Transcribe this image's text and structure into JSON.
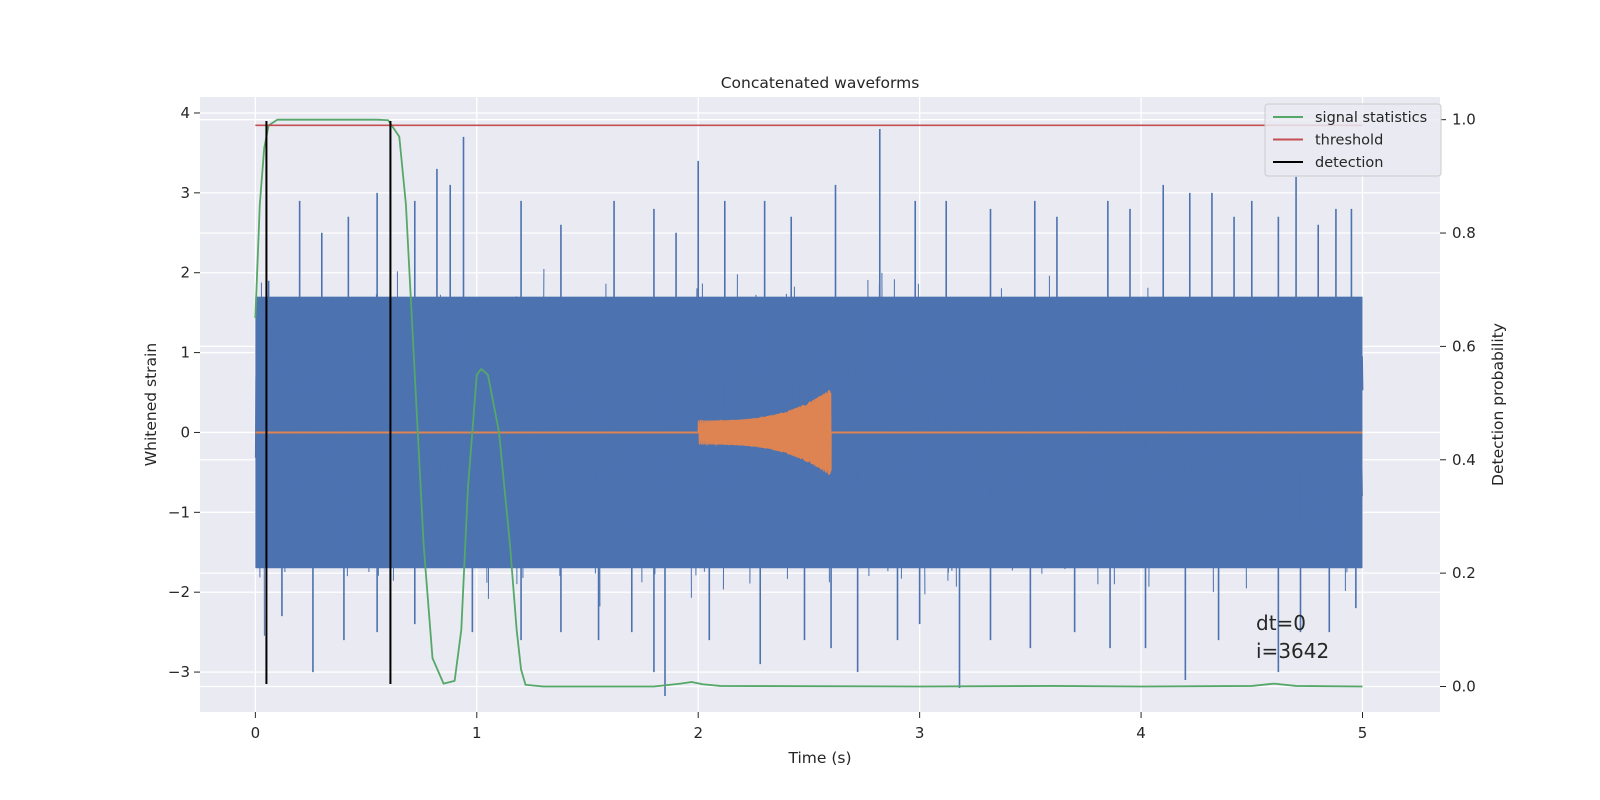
{
  "chart_data": {
    "type": "line",
    "title": "Concatenated waveforms",
    "xlabel": "Time (s)",
    "ylabel": "Whitened strain",
    "y2label": "Detection probability",
    "xlim": [
      -0.25,
      5.35
    ],
    "ylim": [
      -3.5,
      4.2
    ],
    "y2lim": [
      -0.045,
      1.04
    ],
    "xticks": [
      0,
      1,
      2,
      3,
      4,
      5
    ],
    "yticks": [
      -3,
      -2,
      -1,
      0,
      1,
      2,
      3,
      4
    ],
    "y2ticks": [
      0.0,
      0.2,
      0.4,
      0.6,
      0.8,
      1.0
    ],
    "xtick_labels": [
      "0",
      "1",
      "2",
      "3",
      "4",
      "5"
    ],
    "ytick_labels": [
      "−3",
      "−2",
      "−1",
      "0",
      "1",
      "2",
      "3",
      "4"
    ],
    "y2tick_labels": [
      "0.0",
      "0.2",
      "0.4",
      "0.6",
      "0.8",
      "1.0"
    ],
    "grid": true,
    "legend_position": "top-right",
    "colors": {
      "background": "#eaeaf2",
      "grid": "#ffffff",
      "strain": "#4c72b0",
      "injection": "#dd8452",
      "signal_statistics": "#55a868",
      "threshold": "#c44e52",
      "detection": "#000000"
    },
    "series": [
      {
        "kind": "noise",
        "axis": "left",
        "color": "#4c72b0",
        "x_range": [
          0,
          5
        ],
        "band": [
          -1.7,
          1.7
        ],
        "peaks": [
          [
            0.06,
            1.9
          ],
          [
            0.2,
            2.9
          ],
          [
            0.3,
            2.5
          ],
          [
            0.42,
            2.7
          ],
          [
            0.55,
            3.0
          ],
          [
            0.72,
            2.9
          ],
          [
            0.82,
            3.3
          ],
          [
            0.88,
            3.1
          ],
          [
            0.94,
            3.7
          ],
          [
            1.2,
            2.9
          ],
          [
            1.38,
            2.6
          ],
          [
            1.62,
            2.9
          ],
          [
            1.8,
            2.8
          ],
          [
            1.9,
            2.5
          ],
          [
            2.0,
            3.4
          ],
          [
            2.12,
            2.9
          ],
          [
            2.3,
            2.9
          ],
          [
            2.42,
            2.7
          ],
          [
            2.62,
            3.1
          ],
          [
            2.82,
            3.8
          ],
          [
            2.98,
            2.9
          ],
          [
            3.12,
            2.9
          ],
          [
            3.32,
            2.8
          ],
          [
            3.52,
            2.9
          ],
          [
            3.62,
            2.7
          ],
          [
            3.85,
            2.9
          ],
          [
            3.95,
            2.8
          ],
          [
            4.1,
            3.1
          ],
          [
            4.22,
            3.0
          ],
          [
            4.32,
            3.0
          ],
          [
            4.42,
            2.7
          ],
          [
            4.5,
            2.9
          ],
          [
            4.62,
            2.7
          ],
          [
            4.7,
            3.2
          ],
          [
            4.8,
            2.6
          ],
          [
            4.88,
            2.8
          ],
          [
            4.95,
            2.8
          ]
        ],
        "troughs": [
          [
            0.12,
            -2.3
          ],
          [
            0.26,
            -3.0
          ],
          [
            0.4,
            -2.6
          ],
          [
            0.55,
            -2.5
          ],
          [
            0.72,
            -2.4
          ],
          [
            0.98,
            -2.5
          ],
          [
            1.2,
            -2.6
          ],
          [
            1.38,
            -2.5
          ],
          [
            1.55,
            -2.6
          ],
          [
            1.7,
            -2.5
          ],
          [
            1.8,
            -3.0
          ],
          [
            1.85,
            -3.3
          ],
          [
            2.05,
            -2.6
          ],
          [
            2.28,
            -2.9
          ],
          [
            2.48,
            -2.6
          ],
          [
            2.6,
            -2.7
          ],
          [
            2.72,
            -3.0
          ],
          [
            2.9,
            -2.6
          ],
          [
            3.0,
            -2.4
          ],
          [
            3.18,
            -3.2
          ],
          [
            3.32,
            -2.6
          ],
          [
            3.5,
            -2.7
          ],
          [
            3.7,
            -2.5
          ],
          [
            3.86,
            -2.7
          ],
          [
            4.02,
            -2.7
          ],
          [
            4.2,
            -3.1
          ],
          [
            4.35,
            -2.6
          ],
          [
            4.62,
            -3.0
          ],
          [
            4.72,
            -2.5
          ],
          [
            4.85,
            -2.5
          ],
          [
            4.97,
            -2.2
          ]
        ]
      },
      {
        "kind": "chirp",
        "axis": "left",
        "color": "#dd8452",
        "x_range": [
          2.0,
          2.6
        ],
        "amplitude_start": 0.15,
        "amplitude_end": 0.55,
        "baseline": 0
      },
      {
        "name": "signal statistics",
        "axis": "right",
        "color": "#55a868",
        "x": [
          0.0,
          0.02,
          0.04,
          0.06,
          0.1,
          0.2,
          0.4,
          0.55,
          0.6,
          0.65,
          0.68,
          0.72,
          0.76,
          0.8,
          0.85,
          0.9,
          0.93,
          0.96,
          1.0,
          1.02,
          1.05,
          1.1,
          1.15,
          1.18,
          1.2,
          1.22,
          1.3,
          1.8,
          1.92,
          1.97,
          2.02,
          2.1,
          3.0,
          3.6,
          4.0,
          4.5,
          4.6,
          4.7,
          5.0
        ],
        "y": [
          0.65,
          0.85,
          0.95,
          0.99,
          1.0,
          1.0,
          1.0,
          1.0,
          0.999,
          0.97,
          0.85,
          0.55,
          0.25,
          0.05,
          0.005,
          0.01,
          0.1,
          0.35,
          0.55,
          0.56,
          0.55,
          0.45,
          0.25,
          0.1,
          0.03,
          0.003,
          0.0,
          0.0,
          0.005,
          0.008,
          0.004,
          0.001,
          0.0,
          0.001,
          0.0,
          0.001,
          0.005,
          0.001,
          0.0
        ]
      },
      {
        "name": "threshold",
        "axis": "right",
        "color": "#c44e52",
        "x": [
          0,
          5
        ],
        "y": [
          0.99,
          0.99
        ]
      },
      {
        "name": "detection",
        "axis": "left",
        "color": "#000000",
        "kind": "vlines",
        "x": [
          0.05,
          0.61
        ],
        "y_range": [
          -3.15,
          3.9
        ]
      }
    ],
    "legend": [
      "signal statistics",
      "threshold",
      "detection"
    ],
    "annotations": [
      "dt=0",
      "i=3642"
    ]
  }
}
